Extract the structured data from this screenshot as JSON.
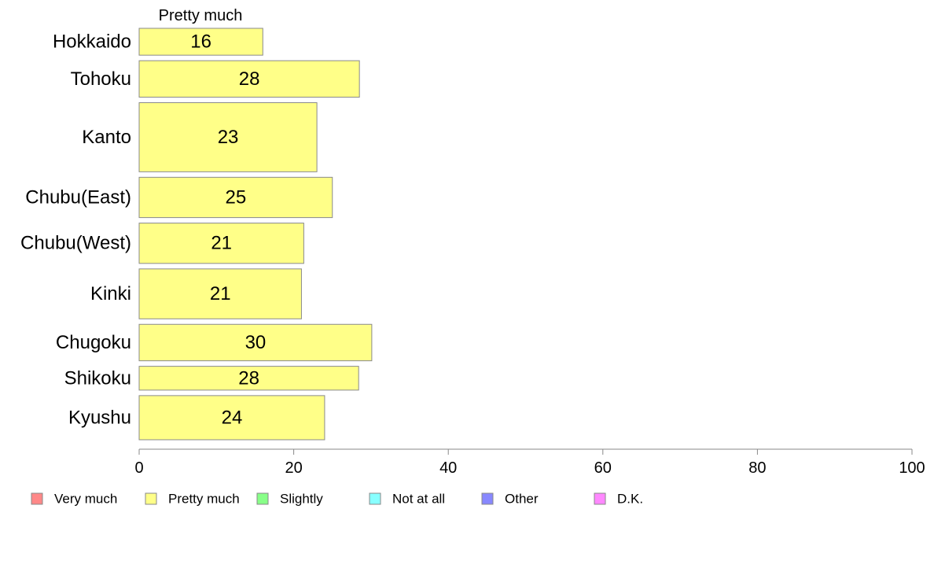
{
  "chart_data": {
    "type": "bar",
    "orientation": "horizontal",
    "title": "",
    "xlabel": "",
    "ylabel": "",
    "series_title": "Pretty much",
    "categories": [
      "Hokkaido",
      "Tohoku",
      "Kanto",
      "Chubu(East)",
      "Chubu(West)",
      "Kinki",
      "Chugoku",
      "Shikoku",
      "Kyushu"
    ],
    "relative_widths": [
      0.7,
      0.95,
      1.8,
      1.05,
      1.05,
      1.3,
      0.95,
      0.62,
      1.15
    ],
    "series": [
      {
        "name": "Pretty much",
        "color": "#ffff88",
        "values": [
          16,
          28.5,
          23,
          25,
          21.3,
          21,
          30.1,
          28.4,
          24
        ],
        "labels": [
          "16",
          "28",
          "23",
          "25",
          "21",
          "21",
          "30",
          "28",
          "24"
        ]
      }
    ],
    "xlim": [
      0,
      100
    ],
    "xticks": [
      0,
      20,
      40,
      60,
      80,
      100
    ],
    "grid": false,
    "legend": {
      "position": "bottom",
      "items": [
        {
          "label": "Very much",
          "color": "#ff8888"
        },
        {
          "label": "Pretty much",
          "color": "#ffff88"
        },
        {
          "label": "Slightly",
          "color": "#88ff88"
        },
        {
          "label": "Not at all",
          "color": "#88ffff"
        },
        {
          "label": "Other",
          "color": "#8888ff"
        },
        {
          "label": "D.K.",
          "color": "#ff88ff"
        }
      ]
    }
  }
}
